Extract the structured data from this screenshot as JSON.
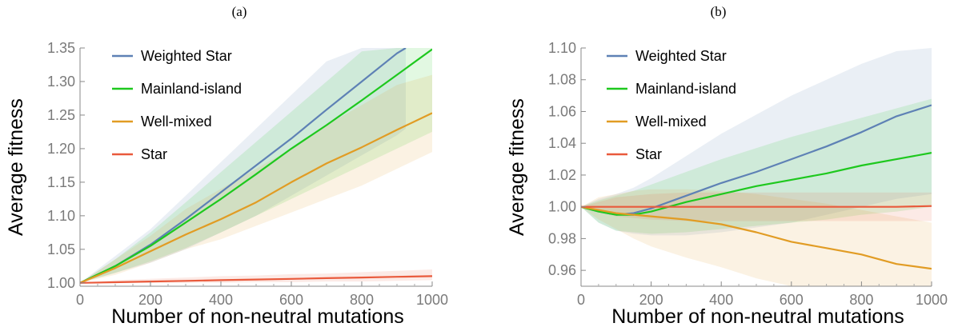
{
  "panels": [
    {
      "label": "(a)"
    },
    {
      "label": "(b)"
    }
  ],
  "chart_data": [
    {
      "type": "line",
      "xlabel": "Number of non-neutral mutations",
      "ylabel": "Average fitness",
      "xlim": [
        0,
        1000
      ],
      "ylim": [
        0.995,
        1.35
      ],
      "xticks": [
        0,
        200,
        400,
        600,
        800,
        1000
      ],
      "yticks": [
        1.0,
        1.05,
        1.1,
        1.15,
        1.2,
        1.25,
        1.3,
        1.35
      ],
      "ytick_decimals": 2,
      "legend_position": "top-left",
      "grid": false,
      "series": [
        {
          "name": "Weighted Star",
          "color": "#5e81b5",
          "x": [
            0,
            100,
            200,
            300,
            400,
            500,
            600,
            700,
            800,
            900,
            925
          ],
          "y": [
            1.0,
            1.025,
            1.057,
            1.095,
            1.135,
            1.175,
            1.215,
            1.258,
            1.3,
            1.342,
            1.35
          ],
          "band_lower": [
            1.0,
            1.015,
            1.03,
            1.05,
            1.075,
            1.1,
            1.13,
            1.16,
            1.19,
            1.22,
            1.23
          ],
          "band_upper": [
            1.0,
            1.04,
            1.08,
            1.13,
            1.18,
            1.23,
            1.28,
            1.33,
            1.35,
            1.35,
            1.35
          ]
        },
        {
          "name": "Mainland-island",
          "color": "#1ec81e",
          "x": [
            0,
            100,
            200,
            300,
            400,
            500,
            600,
            700,
            800,
            900,
            1000
          ],
          "y": [
            1.0,
            1.025,
            1.055,
            1.09,
            1.125,
            1.162,
            1.2,
            1.235,
            1.272,
            1.31,
            1.348
          ],
          "band_lower": [
            1.0,
            1.015,
            1.032,
            1.052,
            1.075,
            1.1,
            1.125,
            1.15,
            1.175,
            1.2,
            1.225
          ],
          "band_upper": [
            1.0,
            1.035,
            1.075,
            1.12,
            1.165,
            1.21,
            1.255,
            1.3,
            1.345,
            1.35,
            1.35
          ]
        },
        {
          "name": "Well-mixed",
          "color": "#e19c24",
          "x": [
            0,
            100,
            200,
            300,
            400,
            500,
            600,
            700,
            800,
            900,
            1000
          ],
          "y": [
            1.0,
            1.022,
            1.047,
            1.072,
            1.095,
            1.12,
            1.15,
            1.178,
            1.202,
            1.228,
            1.253
          ],
          "band_lower": [
            1.0,
            1.012,
            1.03,
            1.05,
            1.065,
            1.085,
            1.105,
            1.125,
            1.145,
            1.17,
            1.195
          ],
          "band_upper": [
            1.0,
            1.035,
            1.07,
            1.11,
            1.14,
            1.17,
            1.2,
            1.235,
            1.265,
            1.295,
            1.31
          ]
        },
        {
          "name": "Star",
          "color": "#e95a3c",
          "x": [
            0,
            100,
            200,
            300,
            400,
            500,
            600,
            700,
            800,
            900,
            1000
          ],
          "y": [
            1.0,
            1.001,
            1.002,
            1.003,
            1.004,
            1.005,
            1.006,
            1.007,
            1.008,
            1.009,
            1.01
          ],
          "band_lower": [
            1.0,
            1.0,
            1.0,
            1.0,
            1.0,
            1.001,
            1.001,
            1.002,
            1.002,
            1.003,
            1.004
          ],
          "band_upper": [
            1.0,
            1.004,
            1.006,
            1.008,
            1.01,
            1.011,
            1.013,
            1.014,
            1.016,
            1.018,
            1.02
          ]
        }
      ]
    },
    {
      "type": "line",
      "xlabel": "Number of non-neutral mutations",
      "ylabel": "Average fitness",
      "xlim": [
        0,
        1000
      ],
      "ylim": [
        0.95,
        1.1
      ],
      "xticks": [
        0,
        200,
        400,
        600,
        800,
        1000
      ],
      "yticks": [
        0.96,
        0.98,
        1.0,
        1.02,
        1.04,
        1.06,
        1.08,
        1.1
      ],
      "ytick_decimals": 2,
      "legend_position": "top-left",
      "grid": false,
      "series": [
        {
          "name": "Weighted Star",
          "color": "#5e81b5",
          "x": [
            0,
            50,
            100,
            150,
            200,
            300,
            400,
            500,
            600,
            700,
            800,
            900,
            1000
          ],
          "y": [
            1.0,
            0.997,
            0.995,
            0.996,
            0.999,
            1.007,
            1.015,
            1.022,
            1.03,
            1.038,
            1.047,
            1.057,
            1.064
          ],
          "band_lower": [
            1.0,
            0.99,
            0.985,
            0.983,
            0.982,
            0.982,
            0.984,
            0.987,
            0.99,
            0.995,
            1.0,
            1.005,
            1.008
          ],
          "band_upper": [
            1.0,
            1.005,
            1.008,
            1.012,
            1.018,
            1.032,
            1.046,
            1.058,
            1.07,
            1.08,
            1.09,
            1.098,
            1.1
          ]
        },
        {
          "name": "Mainland-island",
          "color": "#1ec81e",
          "x": [
            0,
            50,
            100,
            150,
            200,
            300,
            400,
            500,
            600,
            700,
            800,
            900,
            1000
          ],
          "y": [
            1.0,
            0.997,
            0.995,
            0.995,
            0.997,
            1.003,
            1.008,
            1.013,
            1.017,
            1.021,
            1.026,
            1.03,
            1.034
          ],
          "band_lower": [
            1.0,
            0.99,
            0.985,
            0.984,
            0.983,
            0.984,
            0.986,
            0.988,
            0.99,
            0.992,
            0.995,
            0.997,
            1.0
          ],
          "band_upper": [
            1.0,
            1.004,
            1.007,
            1.01,
            1.014,
            1.022,
            1.03,
            1.037,
            1.044,
            1.05,
            1.056,
            1.062,
            1.068
          ]
        },
        {
          "name": "Well-mixed",
          "color": "#e19c24",
          "x": [
            0,
            50,
            100,
            150,
            200,
            300,
            400,
            500,
            600,
            700,
            800,
            900,
            1000
          ],
          "y": [
            1.0,
            0.998,
            0.996,
            0.995,
            0.994,
            0.992,
            0.989,
            0.984,
            0.978,
            0.974,
            0.97,
            0.964,
            0.961
          ],
          "band_lower": [
            1.0,
            0.992,
            0.986,
            0.98,
            0.975,
            0.968,
            0.962,
            0.955,
            0.95,
            0.95,
            0.95,
            0.95,
            0.95
          ],
          "band_upper": [
            1.0,
            1.006,
            1.008,
            1.01,
            1.011,
            1.011,
            1.01,
            1.008,
            1.005,
            1.002,
            0.998,
            0.994,
            0.99
          ]
        },
        {
          "name": "Star",
          "color": "#e95a3c",
          "x": [
            0,
            100,
            200,
            300,
            400,
            500,
            600,
            700,
            800,
            900,
            1000
          ],
          "y": [
            1.0,
            1.0,
            1.0,
            1.0,
            1.0,
            1.0,
            1.0,
            1.0,
            1.0,
            1.0,
            1.0005
          ],
          "band_lower": [
            1.0,
            0.994,
            0.992,
            0.991,
            0.991,
            0.991,
            0.991,
            0.991,
            0.991,
            0.991,
            0.991
          ],
          "band_upper": [
            1.0,
            1.006,
            1.008,
            1.009,
            1.009,
            1.009,
            1.009,
            1.009,
            1.009,
            1.009,
            1.009
          ]
        }
      ]
    }
  ]
}
